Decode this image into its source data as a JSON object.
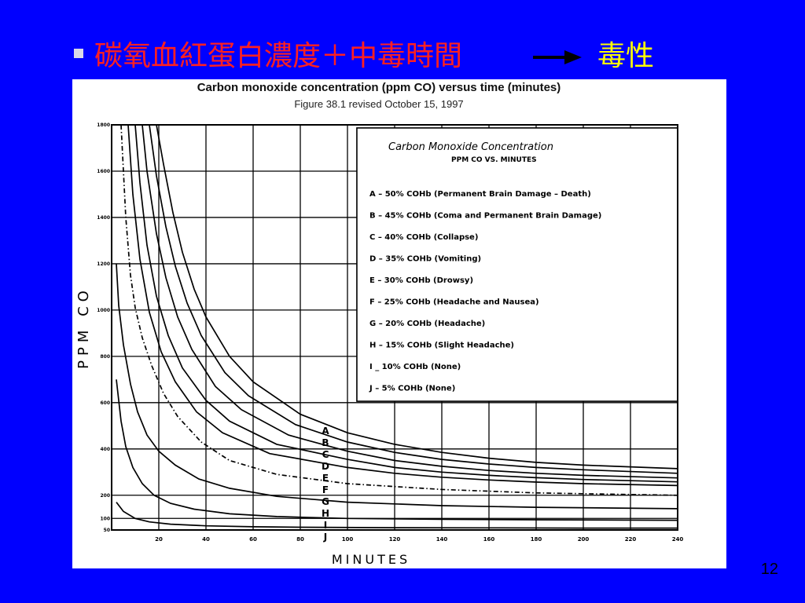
{
  "slide": {
    "title_main": "碳氧血紅蛋白濃度＋中毒時間",
    "title_result": "毒性",
    "page_number": "12",
    "colors": {
      "background": "#0000ff",
      "title": "#ff2020",
      "result": "#ffff00"
    }
  },
  "chart_data": {
    "type": "line",
    "title": "Carbon monoxide concentration (ppm CO) versus time (minutes)",
    "subtitle": "Figure 38.1 revised October 15, 1997",
    "legend_title": "Carbon  Monoxide  Concentration",
    "legend_subtitle": "PPM CO VS. MINUTES",
    "legend_position": "top-right",
    "xlabel": "MINUTES",
    "ylabel": "PPM CO",
    "xlim": [
      0,
      240
    ],
    "ylim": [
      50,
      1800
    ],
    "grid": true,
    "x_ticks": [
      "20",
      "40",
      "60",
      "80",
      "100",
      "120",
      "140",
      "160",
      "180",
      "200",
      "220",
      "240"
    ],
    "y_ticks": [
      {
        "value": 50,
        "label": "50"
      },
      {
        "value": 100,
        "label": "100"
      },
      {
        "value": 200,
        "label": "200"
      },
      {
        "value": 400,
        "label": "400"
      },
      {
        "value": 600,
        "label": "600"
      },
      {
        "value": 800,
        "label": "800"
      },
      {
        "value": 1000,
        "label": "1000"
      },
      {
        "value": 1200,
        "label": "1200"
      },
      {
        "value": 1400,
        "label": "1400"
      },
      {
        "value": 1600,
        "label": "1600"
      },
      {
        "value": 1800,
        "label": "1800"
      }
    ],
    "legend": [
      "A  –  50% COHb  (Permanent  Brain  Damage  –  Death)",
      "B  –  45% COHb  (Coma  and  Permanent  Brain  Damage)",
      "C  –  40% COHb  (Collapse)",
      "D  –  35% COHb  (Vomiting)",
      "E  –  30% COHb  (Drowsy)",
      "F  –  25% COHb  (Headache  and  Nausea)",
      "G  –  20% COHb  (Headache)",
      "H  –  15% COHb  (Slight  Headache)",
      "I   _  10% COHb  (None)",
      "J  –    5% COHb  (None)"
    ],
    "series": [
      {
        "name": "A",
        "dashed": false,
        "x": [
          19,
          22,
          26,
          30,
          35,
          40,
          50,
          60,
          80,
          100,
          120,
          140,
          160,
          180,
          200,
          240
        ],
        "y": [
          1800,
          1630,
          1420,
          1250,
          1090,
          970,
          800,
          690,
          550,
          470,
          420,
          385,
          360,
          342,
          330,
          315
        ]
      },
      {
        "name": "B",
        "dashed": false,
        "x": [
          16,
          19,
          23,
          27,
          32,
          38,
          48,
          58,
          78,
          100,
          120,
          140,
          160,
          180,
          200,
          240
        ],
        "y": [
          1800,
          1580,
          1360,
          1190,
          1030,
          890,
          730,
          630,
          505,
          430,
          385,
          355,
          335,
          320,
          310,
          295
        ]
      },
      {
        "name": "C",
        "dashed": false,
        "x": [
          13,
          15,
          19,
          23,
          28,
          34,
          44,
          55,
          75,
          100,
          120,
          140,
          160,
          180,
          200,
          240
        ],
        "y": [
          1800,
          1600,
          1330,
          1140,
          970,
          830,
          670,
          570,
          460,
          390,
          350,
          325,
          307,
          295,
          286,
          275
        ]
      },
      {
        "name": "D",
        "dashed": false,
        "x": [
          10,
          12,
          15,
          19,
          24,
          30,
          40,
          50,
          70,
          100,
          120,
          140,
          160,
          180,
          200,
          240
        ],
        "y": [
          1800,
          1550,
          1280,
          1060,
          890,
          750,
          610,
          520,
          420,
          355,
          320,
          300,
          286,
          276,
          268,
          258
        ]
      },
      {
        "name": "E",
        "dashed": false,
        "x": [
          7,
          9,
          12,
          16,
          21,
          27,
          36,
          47,
          67,
          100,
          120,
          140,
          160,
          180,
          200,
          240
        ],
        "y": [
          1800,
          1500,
          1220,
          990,
          820,
          690,
          560,
          470,
          380,
          320,
          295,
          278,
          266,
          257,
          250,
          242
        ]
      },
      {
        "name": "F",
        "dashed": true,
        "x": [
          4,
          6,
          8,
          10,
          13,
          17,
          22,
          28,
          38,
          50,
          70,
          100,
          140,
          180,
          240
        ],
        "y": [
          1800,
          1400,
          1150,
          1010,
          880,
          760,
          640,
          540,
          430,
          350,
          290,
          250,
          225,
          210,
          200
        ]
      },
      {
        "name": "G",
        "dashed": false,
        "x": [
          2,
          3,
          5,
          8,
          11,
          15,
          20,
          27,
          37,
          50,
          70,
          100,
          140,
          180,
          240
        ],
        "y": [
          1200,
          1020,
          850,
          680,
          560,
          460,
          390,
          330,
          270,
          230,
          195,
          170,
          155,
          148,
          142
        ]
      },
      {
        "name": "H",
        "dashed": false,
        "x": [
          2,
          4,
          6,
          9,
          13,
          18,
          25,
          35,
          50,
          70,
          100,
          140,
          180,
          240
        ],
        "y": [
          700,
          520,
          410,
          320,
          250,
          200,
          165,
          140,
          120,
          108,
          100,
          96,
          94,
          92
        ]
      },
      {
        "name": "I",
        "dashed": false,
        "x": [
          2,
          5,
          10,
          16,
          25,
          40,
          60,
          80,
          120,
          160,
          200,
          240
        ],
        "y": [
          170,
          130,
          100,
          85,
          75,
          68,
          64,
          62,
          60,
          59,
          58,
          58
        ]
      },
      {
        "name": "J",
        "dashed": false,
        "x": [
          2,
          5,
          10,
          20,
          40,
          80,
          120,
          160,
          200,
          240
        ],
        "y": [
          45,
          41,
          38,
          35,
          33,
          31,
          30,
          29,
          29,
          28
        ]
      }
    ]
  }
}
